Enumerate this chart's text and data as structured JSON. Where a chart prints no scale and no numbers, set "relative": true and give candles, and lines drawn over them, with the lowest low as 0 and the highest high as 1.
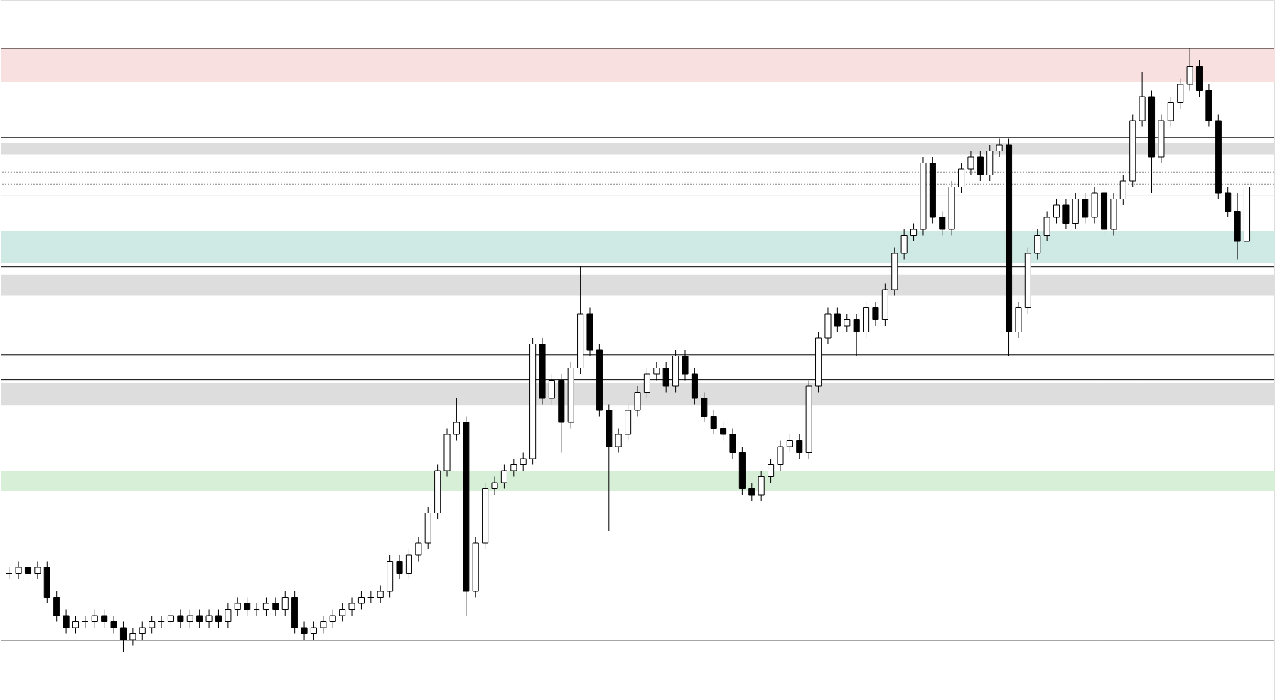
{
  "chart_data": {
    "type": "candlestick",
    "relative": true,
    "categories": [
      null,
      null,
      null,
      null,
      null,
      null,
      null,
      null,
      null,
      null,
      null,
      null,
      null,
      null,
      null,
      null,
      null,
      null,
      null,
      null,
      null,
      null,
      null,
      null,
      null,
      null,
      null,
      null,
      null,
      null,
      null,
      null,
      null,
      null,
      null,
      null,
      null,
      null,
      null,
      null,
      null,
      null,
      null,
      null,
      null,
      null,
      null,
      null,
      null,
      null,
      null,
      null,
      null,
      null,
      null,
      null,
      null,
      null,
      null,
      null,
      null,
      null,
      null,
      null,
      null,
      null,
      null,
      null,
      null,
      null,
      null,
      null,
      null,
      null,
      null,
      null,
      null,
      null,
      null,
      null,
      null,
      null,
      null,
      null,
      null,
      null,
      null,
      null,
      null,
      null,
      null,
      null,
      null,
      null,
      null,
      null,
      null,
      null,
      null,
      null,
      null,
      null,
      null,
      null,
      null,
      null,
      null,
      null,
      null,
      null,
      null,
      null,
      null,
      null,
      null,
      null,
      null,
      null,
      null,
      null,
      null,
      null,
      null,
      null,
      null,
      null,
      null,
      null,
      null,
      null,
      null
    ],
    "ohlc": [
      [
        0.13,
        0.14,
        0.12,
        0.13
      ],
      [
        0.13,
        0.15,
        0.12,
        0.14
      ],
      [
        0.14,
        0.15,
        0.12,
        0.13
      ],
      [
        0.13,
        0.15,
        0.12,
        0.14
      ],
      [
        0.14,
        0.15,
        0.08,
        0.09
      ],
      [
        0.09,
        0.1,
        0.05,
        0.06
      ],
      [
        0.06,
        0.07,
        0.03,
        0.04
      ],
      [
        0.04,
        0.06,
        0.03,
        0.05
      ],
      [
        0.05,
        0.06,
        0.04,
        0.05
      ],
      [
        0.05,
        0.07,
        0.04,
        0.06
      ],
      [
        0.06,
        0.07,
        0.04,
        0.05
      ],
      [
        0.05,
        0.06,
        0.03,
        0.04
      ],
      [
        0.04,
        0.05,
        0.0,
        0.02
      ],
      [
        0.02,
        0.04,
        0.01,
        0.03
      ],
      [
        0.03,
        0.05,
        0.02,
        0.04
      ],
      [
        0.04,
        0.06,
        0.03,
        0.05
      ],
      [
        0.05,
        0.06,
        0.04,
        0.05
      ],
      [
        0.05,
        0.07,
        0.04,
        0.06
      ],
      [
        0.06,
        0.07,
        0.04,
        0.05
      ],
      [
        0.05,
        0.07,
        0.04,
        0.06
      ],
      [
        0.06,
        0.07,
        0.04,
        0.05
      ],
      [
        0.05,
        0.07,
        0.04,
        0.06
      ],
      [
        0.06,
        0.07,
        0.04,
        0.05
      ],
      [
        0.05,
        0.08,
        0.04,
        0.07
      ],
      [
        0.07,
        0.09,
        0.06,
        0.08
      ],
      [
        0.08,
        0.09,
        0.06,
        0.07
      ],
      [
        0.07,
        0.08,
        0.06,
        0.07
      ],
      [
        0.07,
        0.09,
        0.06,
        0.08
      ],
      [
        0.08,
        0.09,
        0.06,
        0.07
      ],
      [
        0.07,
        0.1,
        0.06,
        0.09
      ],
      [
        0.09,
        0.1,
        0.03,
        0.04
      ],
      [
        0.04,
        0.05,
        0.02,
        0.03
      ],
      [
        0.03,
        0.05,
        0.02,
        0.04
      ],
      [
        0.04,
        0.06,
        0.03,
        0.05
      ],
      [
        0.05,
        0.07,
        0.04,
        0.06
      ],
      [
        0.06,
        0.08,
        0.05,
        0.07
      ],
      [
        0.07,
        0.09,
        0.06,
        0.08
      ],
      [
        0.08,
        0.1,
        0.07,
        0.09
      ],
      [
        0.09,
        0.1,
        0.08,
        0.09
      ],
      [
        0.09,
        0.11,
        0.08,
        0.1
      ],
      [
        0.1,
        0.16,
        0.09,
        0.15
      ],
      [
        0.15,
        0.16,
        0.12,
        0.13
      ],
      [
        0.13,
        0.17,
        0.12,
        0.16
      ],
      [
        0.16,
        0.19,
        0.15,
        0.18
      ],
      [
        0.18,
        0.24,
        0.17,
        0.23
      ],
      [
        0.23,
        0.31,
        0.22,
        0.3
      ],
      [
        0.3,
        0.37,
        0.29,
        0.36
      ],
      [
        0.36,
        0.42,
        0.35,
        0.38
      ],
      [
        0.38,
        0.39,
        0.06,
        0.1
      ],
      [
        0.1,
        0.19,
        0.09,
        0.18
      ],
      [
        0.18,
        0.28,
        0.17,
        0.27
      ],
      [
        0.27,
        0.29,
        0.26,
        0.28
      ],
      [
        0.28,
        0.31,
        0.27,
        0.3
      ],
      [
        0.3,
        0.32,
        0.29,
        0.31
      ],
      [
        0.31,
        0.33,
        0.3,
        0.32
      ],
      [
        0.32,
        0.52,
        0.31,
        0.51
      ],
      [
        0.51,
        0.52,
        0.41,
        0.42
      ],
      [
        0.42,
        0.46,
        0.41,
        0.45
      ],
      [
        0.45,
        0.46,
        0.33,
        0.38
      ],
      [
        0.38,
        0.48,
        0.37,
        0.47
      ],
      [
        0.47,
        0.64,
        0.46,
        0.56
      ],
      [
        0.56,
        0.57,
        0.49,
        0.5
      ],
      [
        0.5,
        0.51,
        0.39,
        0.4
      ],
      [
        0.4,
        0.41,
        0.2,
        0.34
      ],
      [
        0.34,
        0.37,
        0.33,
        0.36
      ],
      [
        0.36,
        0.41,
        0.35,
        0.4
      ],
      [
        0.4,
        0.44,
        0.39,
        0.43
      ],
      [
        0.43,
        0.47,
        0.42,
        0.46
      ],
      [
        0.46,
        0.48,
        0.45,
        0.47
      ],
      [
        0.47,
        0.48,
        0.43,
        0.44
      ],
      [
        0.44,
        0.5,
        0.43,
        0.49
      ],
      [
        0.49,
        0.5,
        0.45,
        0.46
      ],
      [
        0.46,
        0.47,
        0.41,
        0.42
      ],
      [
        0.42,
        0.43,
        0.38,
        0.39
      ],
      [
        0.39,
        0.4,
        0.36,
        0.37
      ],
      [
        0.37,
        0.38,
        0.35,
        0.36
      ],
      [
        0.36,
        0.37,
        0.32,
        0.33
      ],
      [
        0.33,
        0.34,
        0.26,
        0.27
      ],
      [
        0.27,
        0.28,
        0.25,
        0.26
      ],
      [
        0.26,
        0.3,
        0.25,
        0.29
      ],
      [
        0.29,
        0.32,
        0.28,
        0.31
      ],
      [
        0.31,
        0.35,
        0.3,
        0.34
      ],
      [
        0.34,
        0.36,
        0.33,
        0.35
      ],
      [
        0.35,
        0.36,
        0.32,
        0.33
      ],
      [
        0.33,
        0.45,
        0.32,
        0.44
      ],
      [
        0.44,
        0.53,
        0.43,
        0.52
      ],
      [
        0.52,
        0.57,
        0.51,
        0.56
      ],
      [
        0.56,
        0.57,
        0.53,
        0.54
      ],
      [
        0.54,
        0.56,
        0.53,
        0.55
      ],
      [
        0.55,
        0.56,
        0.49,
        0.53
      ],
      [
        0.53,
        0.58,
        0.52,
        0.57
      ],
      [
        0.57,
        0.58,
        0.54,
        0.55
      ],
      [
        0.55,
        0.61,
        0.54,
        0.6
      ],
      [
        0.6,
        0.67,
        0.59,
        0.66
      ],
      [
        0.66,
        0.7,
        0.65,
        0.69
      ],
      [
        0.69,
        0.71,
        0.68,
        0.7
      ],
      [
        0.7,
        0.82,
        0.69,
        0.81
      ],
      [
        0.81,
        0.82,
        0.71,
        0.72
      ],
      [
        0.72,
        0.73,
        0.69,
        0.7
      ],
      [
        0.7,
        0.78,
        0.69,
        0.77
      ],
      [
        0.77,
        0.81,
        0.76,
        0.8
      ],
      [
        0.8,
        0.83,
        0.79,
        0.82
      ],
      [
        0.82,
        0.83,
        0.78,
        0.79
      ],
      [
        0.79,
        0.84,
        0.78,
        0.83
      ],
      [
        0.83,
        0.85,
        0.82,
        0.84
      ],
      [
        0.84,
        0.85,
        0.49,
        0.53
      ],
      [
        0.53,
        0.58,
        0.52,
        0.57
      ],
      [
        0.57,
        0.67,
        0.56,
        0.66
      ],
      [
        0.66,
        0.7,
        0.65,
        0.69
      ],
      [
        0.69,
        0.73,
        0.68,
        0.72
      ],
      [
        0.72,
        0.75,
        0.71,
        0.74
      ],
      [
        0.74,
        0.75,
        0.7,
        0.71
      ],
      [
        0.71,
        0.76,
        0.7,
        0.75
      ],
      [
        0.75,
        0.76,
        0.71,
        0.72
      ],
      [
        0.72,
        0.77,
        0.71,
        0.76
      ],
      [
        0.76,
        0.77,
        0.69,
        0.7
      ],
      [
        0.7,
        0.76,
        0.69,
        0.75
      ],
      [
        0.75,
        0.79,
        0.74,
        0.78
      ],
      [
        0.78,
        0.89,
        0.77,
        0.88
      ],
      [
        0.88,
        0.96,
        0.87,
        0.92
      ],
      [
        0.92,
        0.93,
        0.76,
        0.82
      ],
      [
        0.82,
        0.89,
        0.81,
        0.88
      ],
      [
        0.88,
        0.92,
        0.87,
        0.91
      ],
      [
        0.91,
        0.95,
        0.9,
        0.94
      ],
      [
        0.94,
        1.0,
        0.93,
        0.97
      ],
      [
        0.97,
        0.98,
        0.92,
        0.93
      ],
      [
        0.93,
        0.94,
        0.87,
        0.88
      ],
      [
        0.88,
        0.89,
        0.75,
        0.76
      ],
      [
        0.76,
        0.77,
        0.72,
        0.73
      ],
      [
        0.73,
        0.76,
        0.65,
        0.68
      ],
      [
        0.68,
        0.78,
        0.67,
        0.77
      ]
    ],
    "ref_lines": [
      {
        "axis": "y",
        "value": 1.0,
        "color": "#000000"
      },
      {
        "axis": "y",
        "value": 0.852,
        "color": "#000000"
      },
      {
        "axis": "y",
        "value": 0.795,
        "color": "#888888",
        "line_style": "dotted"
      },
      {
        "axis": "y",
        "value": 0.775,
        "color": "#888888",
        "line_style": "dotted"
      },
      {
        "axis": "y",
        "value": 0.757,
        "color": "#000000"
      },
      {
        "axis": "y",
        "value": 0.638,
        "color": "#000000"
      },
      {
        "axis": "y",
        "value": 0.492,
        "color": "#000000"
      },
      {
        "axis": "y",
        "value": 0.451,
        "color": "#000000"
      },
      {
        "axis": "y",
        "value": 0.019,
        "color": "#000000"
      }
    ],
    "bands": [
      {
        "axis": "y",
        "from": 0.944,
        "to": 1.0,
        "color": "#f9e0e0"
      },
      {
        "axis": "y",
        "from": 0.824,
        "to": 0.843,
        "color": "#dddddd"
      },
      {
        "axis": "y",
        "from": 0.644,
        "to": 0.697,
        "color": "#cfe9e4"
      },
      {
        "axis": "y",
        "from": 0.59,
        "to": 0.625,
        "color": "#dddddd"
      },
      {
        "axis": "y",
        "from": 0.408,
        "to": 0.445,
        "color": "#dddddd"
      },
      {
        "axis": "y",
        "from": 0.267,
        "to": 0.299,
        "color": "#d6efd6"
      }
    ]
  }
}
